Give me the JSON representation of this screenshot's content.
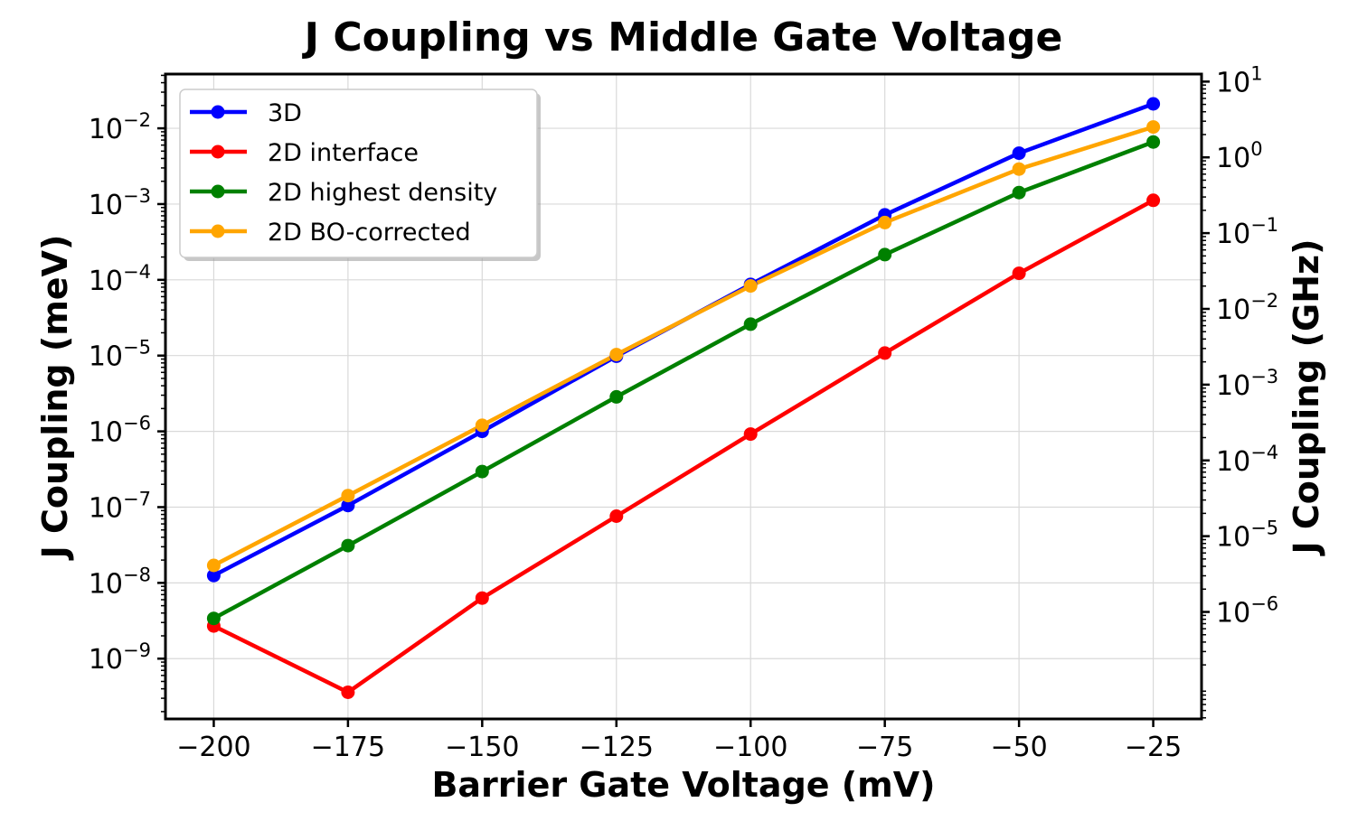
{
  "chart_data": {
    "type": "line",
    "title": "J Coupling vs Middle Gate Voltage",
    "xlabel": "Barrier Gate Voltage (mV)",
    "ylabel": "J Coupling (meV)",
    "y2label": "J Coupling (GHz)",
    "x": [
      -200,
      -175,
      -150,
      -125,
      -100,
      -75,
      -50,
      -25
    ],
    "xticks": [
      -200,
      -175,
      -150,
      -125,
      -100,
      -75,
      -50,
      -25
    ],
    "xtick_labels": [
      "−200",
      "−175",
      "−150",
      "−125",
      "−100",
      "−75",
      "−50",
      "−25"
    ],
    "xlim": [
      -209,
      -16
    ],
    "ylim": [
      1.6e-10,
      0.052
    ],
    "yscale": "log",
    "y_ticks": [
      {
        "value": 1e-09,
        "base": "10",
        "exp": "−9"
      },
      {
        "value": 1e-08,
        "base": "10",
        "exp": "−8"
      },
      {
        "value": 1e-07,
        "base": "10",
        "exp": "−7"
      },
      {
        "value": 1e-06,
        "base": "10",
        "exp": "−6"
      },
      {
        "value": 1e-05,
        "base": "10",
        "exp": "−5"
      },
      {
        "value": 0.0001,
        "base": "10",
        "exp": "−4"
      },
      {
        "value": 0.001,
        "base": "10",
        "exp": "−3"
      },
      {
        "value": 0.01,
        "base": "10",
        "exp": "−2"
      }
    ],
    "y2_conversion_factor": 241.8,
    "y2_ticks": [
      {
        "value": 1e-06,
        "base": "10",
        "exp": "−6"
      },
      {
        "value": 1e-05,
        "base": "10",
        "exp": "−5"
      },
      {
        "value": 0.0001,
        "base": "10",
        "exp": "−4"
      },
      {
        "value": 0.001,
        "base": "10",
        "exp": "−3"
      },
      {
        "value": 0.01,
        "base": "10",
        "exp": "−2"
      },
      {
        "value": 0.1,
        "base": "10",
        "exp": "−1"
      },
      {
        "value": 1,
        "base": "10",
        "exp": "0"
      },
      {
        "value": 10,
        "base": "10",
        "exp": "1"
      }
    ],
    "grid": true,
    "legend_position": "top-left",
    "series": [
      {
        "name": "3D",
        "color": "#0000ff",
        "values": [
          1.25e-08,
          1.05e-07,
          1e-06,
          9.8e-06,
          8.7e-05,
          0.00072,
          0.0047,
          0.021
        ]
      },
      {
        "name": "2D interface",
        "color": "#ff0000",
        "values": [
          2.7e-09,
          3.6e-10,
          6.3e-09,
          7.6e-08,
          9.2e-07,
          1.08e-05,
          0.000122,
          0.00112
        ]
      },
      {
        "name": "2D highest density",
        "color": "#008000",
        "values": [
          3.4e-09,
          3.1e-08,
          2.95e-07,
          2.85e-06,
          2.6e-05,
          0.000215,
          0.00142,
          0.0066
        ]
      },
      {
        "name": "2D BO-corrected",
        "color": "#ffa500",
        "values": [
          1.7e-08,
          1.42e-07,
          1.2e-06,
          1.03e-05,
          8.3e-05,
          0.00057,
          0.0029,
          0.0104
        ]
      }
    ]
  }
}
